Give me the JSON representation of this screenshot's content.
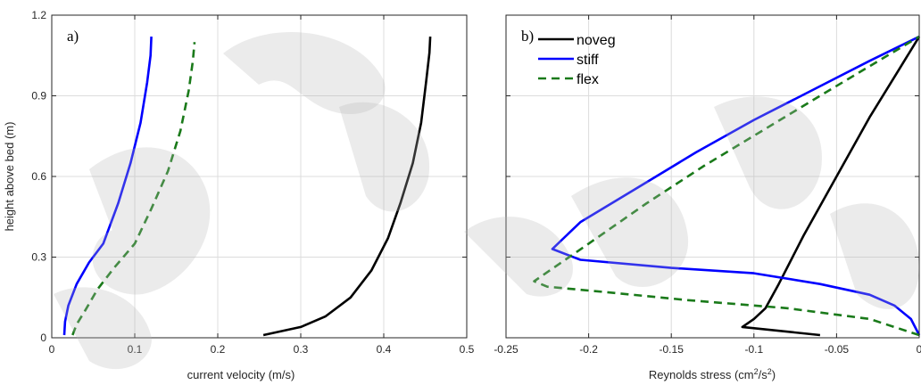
{
  "chart_data": [
    {
      "type": "line",
      "panel_label": "a)",
      "xlabel": "current velocity (m/s)",
      "ylabel": "height above bed (m)",
      "xlim": [
        0,
        0.5
      ],
      "ylim": [
        0,
        1.2
      ],
      "xticks": [
        "0",
        "0.1",
        "0.2",
        "0.3",
        "0.4",
        "0.5"
      ],
      "yticks": [
        "0",
        "0.3",
        "0.6",
        "0.9",
        "1.2"
      ],
      "grid": true,
      "series": [
        {
          "color": "#0000ff",
          "style": "solid",
          "x": [
            0.015,
            0.016,
            0.02,
            0.03,
            0.045,
            0.062,
            0.08,
            0.095,
            0.107,
            0.115,
            0.119,
            0.12
          ],
          "y": [
            0.01,
            0.06,
            0.12,
            0.2,
            0.28,
            0.35,
            0.5,
            0.65,
            0.8,
            0.95,
            1.05,
            1.12
          ]
        },
        {
          "color": "#1a7a1a",
          "style": "dashed",
          "x": [
            0.025,
            0.03,
            0.04,
            0.055,
            0.075,
            0.1,
            0.12,
            0.14,
            0.155,
            0.165,
            0.17,
            0.172
          ],
          "y": [
            0.01,
            0.05,
            0.1,
            0.18,
            0.26,
            0.35,
            0.48,
            0.62,
            0.77,
            0.92,
            1.03,
            1.1
          ]
        },
        {
          "color": "#000000",
          "style": "solid",
          "x": [
            0.255,
            0.3,
            0.33,
            0.36,
            0.385,
            0.405,
            0.42,
            0.435,
            0.445,
            0.451,
            0.455,
            0.456
          ],
          "y": [
            0.01,
            0.04,
            0.08,
            0.15,
            0.25,
            0.37,
            0.5,
            0.65,
            0.8,
            0.95,
            1.06,
            1.12
          ]
        }
      ]
    },
    {
      "type": "line",
      "panel_label": "b)",
      "xlabel": "Reynolds stress (cm",
      "xlabel_sup1": "2",
      "xlabel_mid": "/s",
      "xlabel_sup2": "2",
      "xlabel_end": ")",
      "xlim": [
        -0.25,
        0
      ],
      "ylim": [
        0,
        1.2
      ],
      "xticks": [
        "-0.25",
        "-0.2",
        "-0.15",
        "-0.1",
        "-0.05",
        "0"
      ],
      "grid": true,
      "legend_position": "top-left",
      "series": [
        {
          "name": "noveg",
          "color": "#000000",
          "style": "solid",
          "x": [
            -0.06,
            -0.107,
            -0.1,
            -0.093,
            -0.085,
            -0.07,
            -0.05,
            -0.03,
            -0.012,
            0.0
          ],
          "y": [
            0.01,
            0.04,
            0.07,
            0.11,
            0.2,
            0.38,
            0.6,
            0.82,
            1.0,
            1.12
          ]
        },
        {
          "name": "stiff",
          "color": "#0000ff",
          "style": "solid",
          "x": [
            0.0,
            -0.005,
            -0.015,
            -0.03,
            -0.06,
            -0.1,
            -0.15,
            -0.205,
            -0.222,
            -0.205,
            -0.17,
            -0.135,
            -0.1,
            -0.065,
            -0.03,
            0.0
          ],
          "y": [
            0.01,
            0.07,
            0.12,
            0.16,
            0.2,
            0.24,
            0.26,
            0.29,
            0.33,
            0.43,
            0.56,
            0.69,
            0.81,
            0.92,
            1.03,
            1.12
          ]
        },
        {
          "name": "flex",
          "color": "#1a7a1a",
          "style": "dashed",
          "x": [
            0.0,
            -0.03,
            -0.08,
            -0.14,
            -0.19,
            -0.225,
            -0.233,
            -0.2,
            -0.165,
            -0.13,
            -0.095,
            -0.06,
            -0.03,
            0.0
          ],
          "y": [
            0.01,
            0.07,
            0.11,
            0.14,
            0.17,
            0.19,
            0.21,
            0.35,
            0.5,
            0.64,
            0.77,
            0.9,
            1.01,
            1.12
          ]
        }
      ]
    }
  ]
}
